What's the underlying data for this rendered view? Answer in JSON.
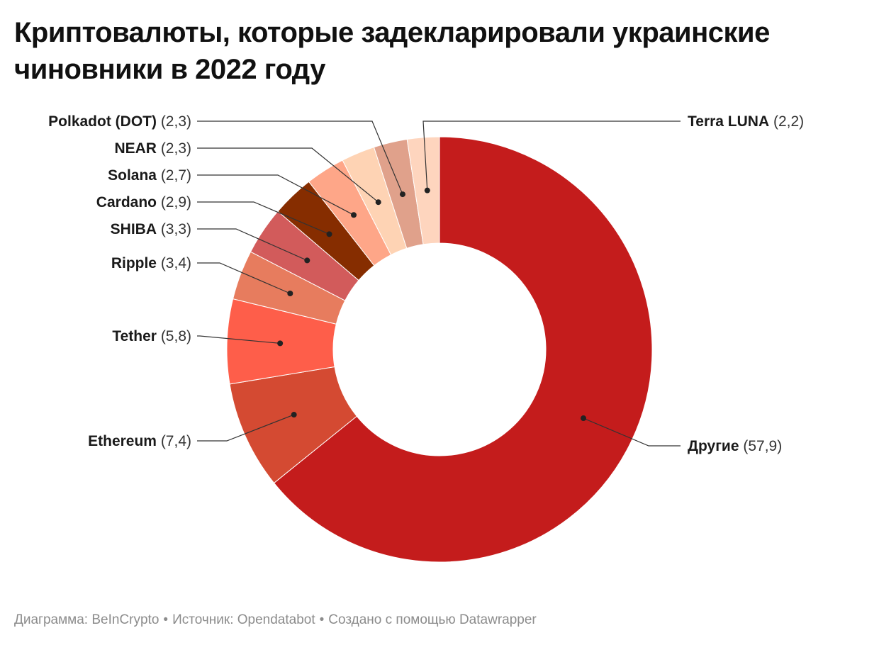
{
  "chart_data": {
    "type": "pie",
    "donut": true,
    "title": "Криптовалюты, которые задекларировали украинские чиновники в 2022 году",
    "slices": [
      {
        "name": "Другие",
        "value": 57.9,
        "value_label": "57,9",
        "color": "#c41c1c"
      },
      {
        "name": "Ethereum",
        "value": 7.4,
        "value_label": "7,4",
        "color": "#d44a32"
      },
      {
        "name": "Tether",
        "value": 5.8,
        "value_label": "5,8",
        "color": "#fe5e4a"
      },
      {
        "name": "Ripple",
        "value": 3.4,
        "value_label": "3,4",
        "color": "#e77c5e"
      },
      {
        "name": "SHIBA",
        "value": 3.3,
        "value_label": "3,3",
        "color": "#d25b5b"
      },
      {
        "name": "Cardano",
        "value": 2.9,
        "value_label": "2,9",
        "color": "#862d00"
      },
      {
        "name": "Solana",
        "value": 2.7,
        "value_label": "2,7",
        "color": "#fea688"
      },
      {
        "name": "NEAR",
        "value": 2.3,
        "value_label": "2,3",
        "color": "#fed3b4"
      },
      {
        "name": "Polkadot (DOT)",
        "value": 2.3,
        "value_label": "2,3",
        "color": "#e0a18b"
      },
      {
        "name": "Terra LUNA",
        "value": 2.2,
        "value_label": "2,2",
        "color": "#fed5be"
      }
    ]
  },
  "footer": {
    "chart_credit": "Диаграмма: BeInCrypto",
    "source": "Источник: Opendatabot",
    "created_with": "Создано с помощью Datawrapper",
    "separator": "•"
  }
}
